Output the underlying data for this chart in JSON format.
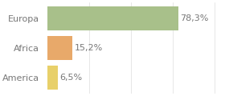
{
  "categories": [
    "America",
    "Africa",
    "Europa"
  ],
  "values": [
    6.5,
    15.2,
    78.3
  ],
  "labels": [
    "6,5%",
    "15,2%",
    "78,3%"
  ],
  "colors": [
    "#e8d06a",
    "#e8a96a",
    "#a8c08a"
  ],
  "xlim": [
    0,
    105
  ],
  "background_color": "#ffffff",
  "bar_height": 0.82,
  "label_fontsize": 8,
  "tick_fontsize": 8,
  "tick_color": "#777777"
}
